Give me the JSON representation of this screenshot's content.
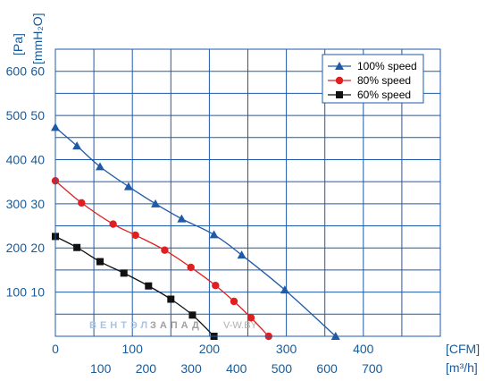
{
  "chart_data": {
    "type": "line",
    "y_axis": {
      "title_pa": "[Pa]",
      "title_mmh2o": "[mmH₂O]",
      "ticks_pa": [
        {
          "value": 100,
          "label": "100"
        },
        {
          "value": 200,
          "label": "200"
        },
        {
          "value": 300,
          "label": "300"
        },
        {
          "value": 400,
          "label": "400"
        },
        {
          "value": 500,
          "label": "500"
        },
        {
          "value": 600,
          "label": "600"
        }
      ],
      "ticks_mmh2o": [
        {
          "value": 100,
          "label": "10"
        },
        {
          "value": 200,
          "label": "20"
        },
        {
          "value": 300,
          "label": "30"
        },
        {
          "value": 400,
          "label": "40"
        },
        {
          "value": 500,
          "label": "50"
        },
        {
          "value": 600,
          "label": "60"
        }
      ],
      "range": [
        0,
        650
      ]
    },
    "x_axis": {
      "title_cfm": "[CFM]",
      "title_m3h": "[m³/h]",
      "ticks_cfm": [
        {
          "value": 0,
          "label": "0"
        },
        {
          "value": 100,
          "label": "100"
        },
        {
          "value": 200,
          "label": "200"
        },
        {
          "value": 300,
          "label": "300"
        },
        {
          "value": 400,
          "label": "400"
        }
      ],
      "ticks_m3h": [
        {
          "value": 58.8,
          "label": "100"
        },
        {
          "value": 117.6,
          "label": "200"
        },
        {
          "value": 176.4,
          "label": "300"
        },
        {
          "value": 235.2,
          "label": "400"
        },
        {
          "value": 294.0,
          "label": "500"
        },
        {
          "value": 352.8,
          "label": "600"
        },
        {
          "value": 411.6,
          "label": "700"
        }
      ],
      "range": [
        0,
        500
      ]
    },
    "gridlines_cfm": [
      0,
      50,
      100,
      150,
      200,
      250,
      300,
      350,
      400,
      450,
      500
    ],
    "gridlines_pa": [
      0,
      50,
      100,
      150,
      200,
      250,
      300,
      350,
      400,
      450,
      500,
      550,
      600,
      650
    ],
    "grid": true,
    "legend_position": "top-right",
    "series": [
      {
        "name": "100%  speed",
        "color": "#1f5aa8",
        "marker": "triangle",
        "points": [
          [
            0,
            473
          ],
          [
            28,
            431
          ],
          [
            58,
            384
          ],
          [
            95,
            339
          ],
          [
            130,
            300
          ],
          [
            164,
            266
          ],
          [
            206,
            230
          ],
          [
            242,
            184
          ],
          [
            298,
            105
          ],
          [
            364,
            0
          ]
        ]
      },
      {
        "name": "80%  speed",
        "color": "#e02020",
        "marker": "circle",
        "points": [
          [
            0,
            352
          ],
          [
            34,
            302
          ],
          [
            75,
            254
          ],
          [
            104,
            229
          ],
          [
            142,
            195
          ],
          [
            176,
            156
          ],
          [
            208,
            115
          ],
          [
            232,
            79
          ],
          [
            254,
            42
          ],
          [
            277,
            0
          ]
        ]
      },
      {
        "name": "60%  speed",
        "color": "#111111",
        "marker": "square",
        "points": [
          [
            0,
            226
          ],
          [
            28,
            201
          ],
          [
            58,
            169
          ],
          [
            89,
            143
          ],
          [
            121,
            114
          ],
          [
            150,
            84
          ],
          [
            178,
            48
          ],
          [
            206,
            0
          ]
        ]
      }
    ]
  },
  "watermark": {
    "left": "ВЕНТЭЛ",
    "right": "ЗАПАД",
    "site": "V-W.BY"
  }
}
